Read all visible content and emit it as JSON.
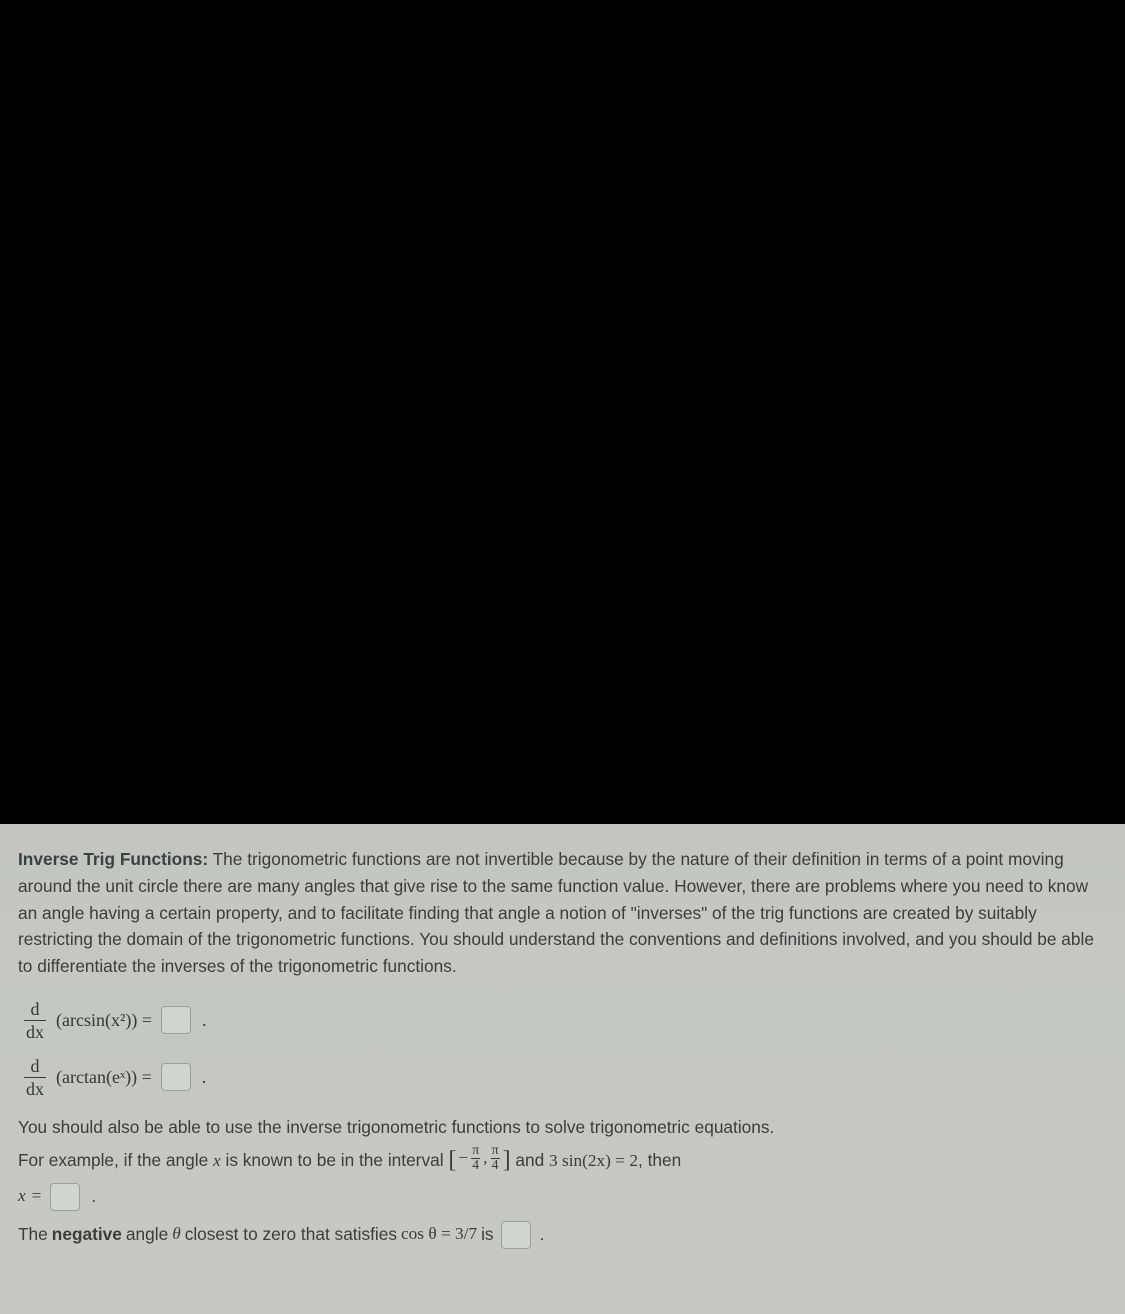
{
  "colors": {
    "page_background": "#000000",
    "content_background_top": "#c1c4bf",
    "content_background_bottom": "#c6c9c3",
    "text_color": "#3a3d3a",
    "heading_color": "#38413d",
    "box_border": "#9aa19a",
    "box_fill": "#d1d5cf",
    "rule_color": "#3a3d3a"
  },
  "typography": {
    "body_font": "Segoe UI / Arial",
    "math_font": "Cambria Math / Times New Roman",
    "body_size_pt": 13,
    "line_height": 1.55
  },
  "heading": "Inverse Trig Functions:",
  "intro": " The trigonometric functions are not invertible because by the nature of their definition in terms of a point moving around the unit circle there are many angles that give rise to the same function value. However, there are problems where you need to know an angle having a certain property, and to facilitate finding that angle a notion of \"inverses\" of the trig functions are created by suitably restricting the domain of the trigonometric functions. You should understand the conventions and definitions involved, and you should be able to differentiate the inverses of the trigonometric functions.",
  "eq1": {
    "d": "d",
    "dx": "dx",
    "expr": "(arcsin(x²)) ="
  },
  "eq2": {
    "d": "d",
    "dx": "dx",
    "expr": "(arctan(eˣ)) ="
  },
  "para2_a": "You should also be able to use the inverse trigonometric functions to solve trigonometric equations.",
  "para2_b_pre": "For example, if the angle ",
  "para2_b_x": "x",
  "para2_b_mid": " is known to be in the interval ",
  "interval": {
    "lb": "[",
    "neg": "−",
    "pi": "π",
    "four": "4",
    "comma": ",",
    "rb": "]"
  },
  "para2_b_post1": " and ",
  "eq_inline": "3 sin(2x) = 2",
  "para2_b_post2": ", then",
  "xline": {
    "x": "x",
    "eq": "="
  },
  "last": {
    "pre": "The ",
    "neg": "negative",
    "mid": " angle ",
    "theta": "θ",
    "mid2": " closest to zero that satisfies ",
    "cos": "cos θ = 3/7",
    "post": " is"
  },
  "period": "."
}
